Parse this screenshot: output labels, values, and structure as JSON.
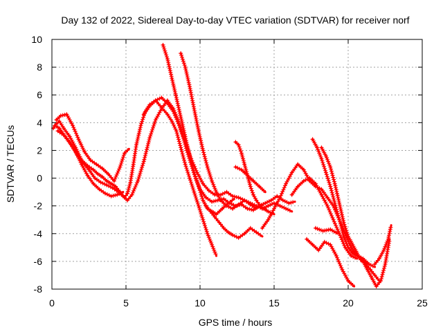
{
  "chart_data": {
    "type": "scatter",
    "title": "Day 132 of 2022, Sidereal Day-to-day VTEC variation (SDTVAR) for receiver norf",
    "xlabel": "GPS time / hours",
    "ylabel": "SDTVAR / TECUs",
    "xlim": [
      0,
      25
    ],
    "ylim": [
      -8,
      10
    ],
    "x_ticks": [
      0,
      5,
      10,
      15,
      20,
      25
    ],
    "y_ticks": [
      -8,
      -6,
      -4,
      -2,
      0,
      2,
      4,
      6,
      8,
      10
    ],
    "x_tick_labels": [
      "0",
      "5",
      "10",
      "15",
      "20",
      "25"
    ],
    "y_tick_labels": [
      "-8",
      "-6",
      "-4",
      "-2",
      "0",
      "2",
      "4",
      "6",
      "8",
      "10"
    ],
    "grid": true,
    "legend": "none",
    "marker": "plus",
    "color": "#ff0000",
    "series": [
      {
        "x": [
          0.1,
          0.3,
          0.5,
          0.8,
          1.2,
          1.6,
          2.0,
          2.4,
          2.8,
          3.1,
          3.4,
          3.7,
          4.0,
          4.3,
          4.6,
          4.9,
          5.1,
          5.3,
          5.5,
          5.7,
          6.0,
          6.3,
          6.6,
          7.0,
          7.4,
          7.8,
          8.1,
          8.4,
          8.7,
          9.0,
          9.3,
          9.6,
          9.9,
          10.2,
          10.5,
          10.8,
          11.1
        ],
        "y": [
          3.6,
          3.9,
          4.1,
          3.6,
          3.0,
          2.2,
          1.3,
          0.9,
          0.6,
          0.3,
          0.1,
          -0.2,
          -0.4,
          -0.6,
          -1.0,
          -1.4,
          -1.1,
          -0.3,
          1.0,
          2.4,
          3.8,
          4.8,
          5.3,
          5.6,
          5.1,
          4.6,
          4.1,
          3.4,
          2.2,
          1.0,
          0.0,
          -1.0,
          -2.0,
          -3.0,
          -4.0,
          -4.8,
          -5.6
        ]
      },
      {
        "x": [
          0.2,
          0.5,
          0.9,
          1.3,
          1.7,
          2.1,
          2.5,
          2.9,
          3.3,
          3.7,
          4.1,
          4.5,
          4.8,
          5.1,
          5.4,
          5.8,
          6.2,
          6.6,
          7.0,
          7.4,
          7.8,
          8.2,
          8.5,
          8.8,
          9.1,
          9.4,
          9.7,
          10.0,
          10.4,
          10.8,
          11.2,
          11.6,
          12.0,
          12.4,
          12.8,
          13.2,
          13.6,
          14.0,
          14.4,
          14.8,
          15.2,
          15.6,
          16.0,
          16.4
        ],
        "y": [
          3.8,
          3.6,
          3.0,
          2.4,
          1.7,
          1.1,
          0.6,
          0.0,
          -0.3,
          -0.5,
          -0.7,
          -1.0,
          -1.3,
          -1.6,
          -1.2,
          -0.2,
          1.2,
          2.9,
          4.2,
          5.0,
          5.6,
          5.0,
          4.2,
          3.2,
          2.0,
          1.0,
          0.0,
          -0.8,
          -1.4,
          -1.7,
          -1.6,
          -1.5,
          -1.8,
          -2.0,
          -1.9,
          -2.2,
          -2.3,
          -2.0,
          -1.8,
          -1.6,
          -1.3,
          -1.6,
          -1.8,
          -1.7
        ]
      },
      {
        "x": [
          0.3,
          0.6,
          1.0,
          1.4,
          1.8,
          2.2,
          2.6,
          3.0,
          3.4,
          3.8,
          4.2,
          4.6,
          4.9,
          5.2
        ],
        "y": [
          4.2,
          4.5,
          4.6,
          3.8,
          2.8,
          1.9,
          1.3,
          1.0,
          0.7,
          0.3,
          -0.2,
          0.8,
          1.8,
          2.1
        ]
      },
      {
        "x": [
          0.4,
          0.8,
          1.2,
          1.6,
          2.0,
          2.4,
          2.8,
          3.2,
          3.6,
          4.0,
          4.4,
          4.8
        ],
        "y": [
          3.4,
          3.1,
          2.6,
          1.9,
          1.0,
          0.2,
          -0.4,
          -0.8,
          -1.1,
          -1.3,
          -1.2,
          -1.0
        ]
      },
      {
        "x": [
          6.2,
          6.6,
          7.0,
          7.4,
          7.8,
          8.2,
          8.6,
          9.0,
          9.4,
          9.8,
          10.2,
          10.6,
          11.0,
          11.4,
          11.8,
          12.2,
          12.6,
          13.0,
          13.4,
          13.8,
          14.2,
          14.6,
          15.0,
          15.4,
          15.8,
          16.2
        ],
        "y": [
          4.6,
          5.2,
          5.6,
          5.8,
          5.4,
          4.8,
          3.8,
          2.6,
          1.4,
          0.4,
          -0.4,
          -0.9,
          -1.2,
          -1.2,
          -1.0,
          -1.3,
          -1.4,
          -1.6,
          -1.8,
          -2.0,
          -2.2,
          -2.0,
          -1.8,
          -2.0,
          -2.2,
          -2.4
        ]
      },
      {
        "x": [
          7.5,
          7.8,
          8.1,
          8.4,
          8.7,
          9.0,
          9.3,
          9.6,
          9.9,
          10.2,
          10.5,
          10.8,
          11.1,
          11.5,
          11.9,
          12.3
        ],
        "y": [
          9.6,
          8.6,
          7.2,
          5.8,
          4.4,
          3.0,
          1.6,
          0.4,
          -0.6,
          -1.6,
          -2.2,
          -2.4,
          -2.6,
          -2.2,
          -1.8,
          -1.5
        ]
      },
      {
        "x": [
          8.7,
          9.0,
          9.3,
          9.6,
          9.9,
          10.2,
          10.5,
          10.8,
          11.1,
          11.4,
          11.8,
          12.2,
          12.6,
          13.0,
          13.4,
          13.8
        ],
        "y": [
          9.0,
          8.0,
          6.6,
          5.0,
          3.4,
          2.0,
          0.8,
          -0.2,
          -1.0,
          -1.6,
          -2.0,
          -2.2,
          -1.9,
          -1.6,
          -1.9,
          -2.2
        ]
      },
      {
        "x": [
          10.4,
          10.7,
          11.0,
          11.3,
          11.6,
          11.9,
          12.2,
          12.6,
          13.0,
          13.4,
          13.8,
          14.2
        ],
        "y": [
          -2.0,
          -2.4,
          -2.8,
          -3.2,
          -3.6,
          -3.9,
          -4.1,
          -4.3,
          -4.0,
          -3.6,
          -3.9,
          -4.2
        ]
      },
      {
        "x": [
          12.4,
          12.6,
          12.8,
          13.0,
          13.2,
          13.4,
          13.6,
          13.8,
          14.0,
          14.3,
          14.6,
          15.0
        ],
        "y": [
          2.6,
          2.4,
          1.8,
          1.0,
          0.2,
          -0.6,
          -1.2,
          -1.6,
          -1.9,
          -2.2,
          -2.4,
          -2.6
        ]
      },
      {
        "x": [
          12.4,
          12.8,
          13.2,
          13.6,
          14.0,
          14.4
        ],
        "y": [
          0.8,
          0.6,
          0.2,
          -0.2,
          -0.6,
          -1.0
        ]
      },
      {
        "x": [
          14.2,
          14.6,
          15.0,
          15.4,
          15.8,
          16.2,
          16.6,
          17.0,
          17.4,
          17.8,
          18.2,
          18.6,
          19.0,
          19.4,
          19.8,
          20.2,
          20.6,
          21.0,
          21.4,
          21.8
        ],
        "y": [
          -3.6,
          -3.0,
          -2.2,
          -1.4,
          -0.4,
          0.4,
          1.0,
          0.6,
          -0.2,
          -0.6,
          -0.8,
          -1.4,
          -2.0,
          -3.0,
          -4.0,
          -5.0,
          -5.6,
          -5.8,
          -6.2,
          -6.4
        ]
      },
      {
        "x": [
          16.2,
          16.6,
          17.0,
          17.4,
          17.8,
          18.2,
          18.6,
          19.0,
          19.4,
          19.8,
          20.2,
          20.6
        ],
        "y": [
          -1.2,
          -0.6,
          -0.2,
          0.0,
          -0.4,
          -1.2,
          -2.0,
          -3.0,
          -4.0,
          -5.0,
          -5.6,
          -5.8
        ]
      },
      {
        "x": [
          17.6,
          17.9,
          18.2,
          18.5,
          18.8,
          19.1,
          19.4,
          19.7,
          20.0,
          20.3,
          20.6,
          20.9,
          21.2,
          21.5,
          21.8,
          22.1
        ],
        "y": [
          2.8,
          2.2,
          1.4,
          0.4,
          -0.6,
          -1.8,
          -3.0,
          -4.2,
          -5.0,
          -5.4,
          -5.6,
          -5.8,
          -6.2,
          -6.6,
          -7.0,
          -7.4
        ]
      },
      {
        "x": [
          18.2,
          18.5,
          18.8,
          19.1,
          19.4,
          19.7,
          20.0,
          20.3,
          20.6,
          20.9
        ],
        "y": [
          2.2,
          1.6,
          0.8,
          -0.4,
          -1.8,
          -3.2,
          -4.2,
          -4.8,
          -5.4,
          -6.0
        ]
      },
      {
        "x": [
          17.2,
          17.6,
          18.0,
          18.4,
          18.8,
          19.2,
          19.6,
          20.0,
          20.4
        ],
        "y": [
          -4.4,
          -4.8,
          -5.2,
          -4.6,
          -4.8,
          -5.6,
          -6.6,
          -7.4,
          -7.8
        ]
      },
      {
        "x": [
          17.8,
          18.3,
          18.8,
          19.3
        ],
        "y": [
          -3.6,
          -3.8,
          -3.7,
          -4.0
        ]
      },
      {
        "x": [
          21.0,
          21.3,
          21.6,
          21.9,
          22.2,
          22.5,
          22.8
        ],
        "y": [
          -6.0,
          -6.6,
          -7.2,
          -7.8,
          -7.4,
          -6.2,
          -4.4
        ]
      },
      {
        "x": [
          21.8,
          22.1,
          22.4,
          22.7,
          22.9
        ],
        "y": [
          -6.2,
          -5.8,
          -5.2,
          -4.4,
          -3.4
        ]
      }
    ]
  }
}
